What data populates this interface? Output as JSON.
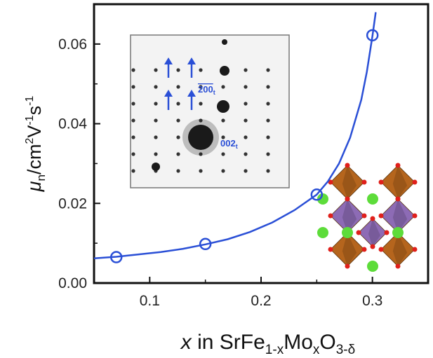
{
  "chart_data": {
    "type": "scatter",
    "title": "",
    "xlabel": {
      "var": "x",
      "connector": " in SrFe",
      "sub1": "1-x",
      "mid": "Mo",
      "sub2": "x",
      "mid2": "O",
      "sub3": "3-δ"
    },
    "ylabel": {
      "mu": "μ",
      "sub": "n",
      "unit1": "/cm",
      "sup": "2",
      "unit2": "V",
      "sup2": "-1",
      "unit3": "s",
      "sup3": "-1"
    },
    "xlim": [
      0.05,
      0.35
    ],
    "ylim": [
      0.0,
      0.07
    ],
    "x_ticks": [
      "0.1",
      "0.2",
      "0.3"
    ],
    "x_tick_values": [
      0.1,
      0.2,
      0.3
    ],
    "y_ticks": [
      "0.00",
      "0.02",
      "0.04",
      "0.06"
    ],
    "y_tick_values": [
      0.0,
      0.02,
      0.04,
      0.06
    ],
    "series": [
      {
        "x": [
          0.07,
          0.15,
          0.25,
          0.3
        ],
        "y": [
          0.0065,
          0.0098,
          0.0222,
          0.0622
        ],
        "marker": "open-circle",
        "color": "#2a4fd6"
      }
    ],
    "fit_curve": {
      "x": [
        0.05,
        0.07,
        0.09,
        0.11,
        0.13,
        0.15,
        0.17,
        0.19,
        0.21,
        0.23,
        0.25,
        0.26,
        0.27,
        0.28,
        0.29,
        0.295,
        0.3,
        0.303
      ],
      "y": [
        0.0062,
        0.0066,
        0.0072,
        0.0078,
        0.0086,
        0.0097,
        0.011,
        0.0128,
        0.0152,
        0.0183,
        0.0222,
        0.0255,
        0.03,
        0.0365,
        0.046,
        0.053,
        0.062,
        0.068
      ],
      "color": "#2a4fd6"
    },
    "grid": false,
    "inset_annotations": {
      "label_a": "200",
      "label_a_sub": "t",
      "label_b": "002",
      "label_b_sub": "t"
    },
    "colors": {
      "axis": "#111111",
      "inset_bg": "#f2f2f2",
      "annotation": "#2a4fd6",
      "octa_orange": "#b5651d",
      "octa_purple": "#8d6bb5",
      "atom_green": "#5ddc3a",
      "atom_red": "#e0201b"
    }
  }
}
